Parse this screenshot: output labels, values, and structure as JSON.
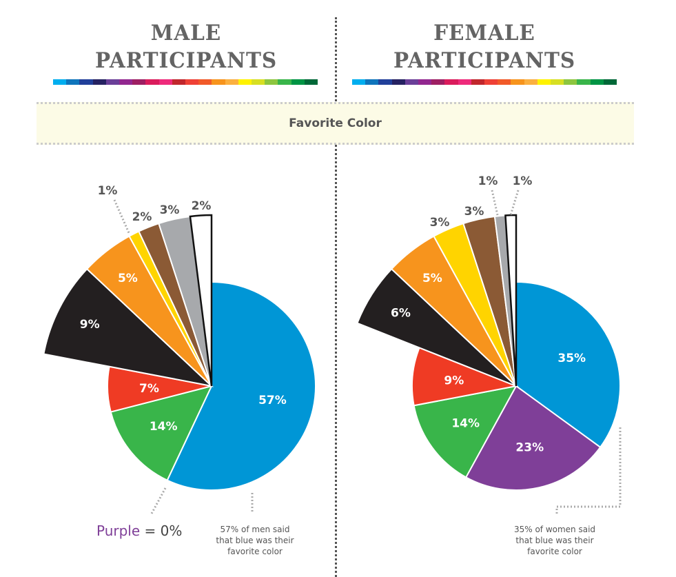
{
  "titles": {
    "male": [
      "MALE",
      "PARTICIPANTS"
    ],
    "female": [
      "FEMALE",
      "PARTICIPANTS"
    ]
  },
  "banner": "Favorite Color",
  "palette": [
    "#00aeef",
    "#0f75bc",
    "#21409a",
    "#262262",
    "#6a3f98",
    "#92278f",
    "#9e1f63",
    "#da1c5c",
    "#ee2a7b",
    "#c1272d",
    "#ef4136",
    "#f15a29",
    "#f7941d",
    "#fbb040",
    "#fff200",
    "#d7df23",
    "#8dc63f",
    "#39b54a",
    "#009444",
    "#006838"
  ],
  "chart_data": [
    {
      "type": "pie",
      "slices": [
        {
          "label": "57%",
          "color_name": "blue",
          "value": 57,
          "color": "#0096d6",
          "exploded": false
        },
        {
          "label": "14%",
          "color_name": "green",
          "value": 14,
          "color": "#39b54a",
          "exploded": false
        },
        {
          "label": "7%",
          "color_name": "red",
          "value": 7,
          "color": "#ef3b24",
          "exploded": false
        },
        {
          "label": "9%",
          "color_name": "black",
          "value": 9,
          "color": "#231f20",
          "exploded": true
        },
        {
          "label": "5%",
          "color_name": "orange",
          "value": 5,
          "color": "#f7941d",
          "exploded": true
        },
        {
          "label": "1%",
          "color_name": "yellow",
          "value": 1,
          "color": "#ffd400",
          "exploded": true
        },
        {
          "label": "2%",
          "color_name": "brown",
          "value": 2,
          "color": "#8b5a35",
          "exploded": true
        },
        {
          "label": "3%",
          "color_name": "gray",
          "value": 3,
          "color": "#a7a9ac",
          "exploded": true
        },
        {
          "label": "2%",
          "color_name": "white",
          "value": 2,
          "color": "#ffffff",
          "exploded": true
        }
      ]
    },
    {
      "type": "pie",
      "slices": [
        {
          "label": "35%",
          "color_name": "blue",
          "value": 35,
          "color": "#0096d6",
          "exploded": false
        },
        {
          "label": "23%",
          "color_name": "purple",
          "value": 23,
          "color": "#7f3f98",
          "exploded": false
        },
        {
          "label": "14%",
          "color_name": "green",
          "value": 14,
          "color": "#39b54a",
          "exploded": false
        },
        {
          "label": "9%",
          "color_name": "red",
          "value": 9,
          "color": "#ef3b24",
          "exploded": false
        },
        {
          "label": "6%",
          "color_name": "black",
          "value": 6,
          "color": "#231f20",
          "exploded": true
        },
        {
          "label": "5%",
          "color_name": "orange",
          "value": 5,
          "color": "#f7941d",
          "exploded": true
        },
        {
          "label": "3%",
          "color_name": "yellow",
          "value": 3,
          "color": "#ffd400",
          "exploded": true
        },
        {
          "label": "3%",
          "color_name": "brown",
          "value": 3,
          "color": "#8b5a35",
          "exploded": true
        },
        {
          "label": "1%",
          "color_name": "gray",
          "value": 1,
          "color": "#a7a9ac",
          "exploded": true
        },
        {
          "label": "1%",
          "color_name": "white",
          "value": 1,
          "color": "#ffffff",
          "exploded": true
        }
      ]
    }
  ],
  "annotations": {
    "male_note": [
      "57% of men said",
      "that blue was their",
      "favorite color"
    ],
    "female_note": [
      "35% of women said",
      "that blue was their",
      "favorite color"
    ],
    "purple_word": "Purple",
    "purple_value": " = 0%"
  }
}
